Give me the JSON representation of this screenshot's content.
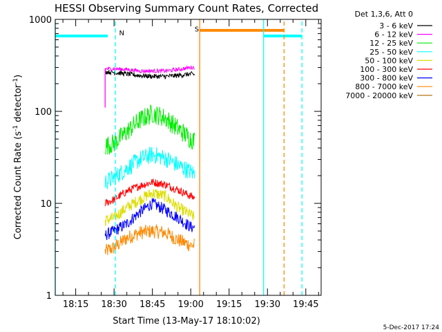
{
  "chart_data": {
    "type": "line",
    "title": "HESSI Observing Summary Count Rates, Corrected",
    "xlabel": "Start Time (13-May-17 18:10:02)",
    "ylabel_parts": [
      "Corrected Count Rate (s",
      "-1",
      " detector",
      "-1",
      ")"
    ],
    "ylabel": "Corrected Count Rate (s^-1 detector^-1)",
    "yscale": "log",
    "ylim": [
      1,
      1000
    ],
    "xlim_minutes": [
      1087,
      1191
    ],
    "x_ticks": [
      {
        "minute": 1095,
        "label": "18:15"
      },
      {
        "minute": 1110,
        "label": "18:30"
      },
      {
        "minute": 1125,
        "label": "18:45"
      },
      {
        "minute": 1140,
        "label": "19:00"
      },
      {
        "minute": 1155,
        "label": "19:15"
      },
      {
        "minute": 1170,
        "label": "19:30"
      },
      {
        "minute": 1185,
        "label": "19:45"
      }
    ],
    "y_ticks": [
      {
        "value": 1,
        "label": "1"
      },
      {
        "value": 10,
        "label": "10"
      },
      {
        "value": 100,
        "label": "100"
      },
      {
        "value": 1000,
        "label": "1000"
      }
    ],
    "legend_title": "Det 1,3,6, Att 0",
    "legend_placement": "right",
    "footer_date": "5-Dec-2017 17:24",
    "series": [
      {
        "name": "3 - 6 keV",
        "color": "#000000",
        "x_minutes": [
          1106.5,
          1110,
          1115,
          1120,
          1125,
          1130,
          1135,
          1140,
          1141.5
        ],
        "values": [
          270,
          265,
          255,
          245,
          240,
          240,
          245,
          255,
          250
        ],
        "noise": 0.06
      },
      {
        "name": "6 - 12 keV",
        "color": "#ff00ff",
        "x_minutes": [
          1106.5,
          1110,
          1115,
          1120,
          1125,
          1130,
          1135,
          1140,
          1141.5
        ],
        "values": [
          290,
          290,
          285,
          275,
          275,
          275,
          285,
          300,
          300
        ],
        "noise": 0.05
      },
      {
        "name": "12 - 25 keV",
        "color": "#00ee00",
        "x_minutes": [
          1106.5,
          1110,
          1115,
          1120,
          1125,
          1130,
          1135,
          1140,
          1141.5
        ],
        "values": [
          42,
          45,
          60,
          80,
          95,
          85,
          65,
          50,
          48
        ],
        "noise": 0.25
      },
      {
        "name": "25 - 50 keV",
        "color": "#00ffff",
        "x_minutes": [
          1106.5,
          1110,
          1115,
          1120,
          1125,
          1130,
          1135,
          1140,
          1141.5
        ],
        "values": [
          17,
          19,
          24,
          30,
          34,
          31,
          26,
          22,
          21
        ],
        "noise": 0.22
      },
      {
        "name": "50 - 100 keV",
        "color": "#dddd00",
        "x_minutes": [
          1106.5,
          1110,
          1115,
          1120,
          1125,
          1130,
          1135,
          1140,
          1141.5
        ],
        "values": [
          6.5,
          7,
          9,
          11,
          13,
          12,
          9,
          7.5,
          7
        ],
        "noise": 0.15
      },
      {
        "name": "100 - 300 keV",
        "color": "#ff0000",
        "x_minutes": [
          1106.5,
          1110,
          1115,
          1120,
          1125,
          1130,
          1135,
          1140,
          1141.5
        ],
        "values": [
          10,
          11,
          13.5,
          15.5,
          17,
          16,
          14,
          12,
          11.5
        ],
        "noise": 0.1
      },
      {
        "name": "300 - 800 keV",
        "color": "#0000ff",
        "x_minutes": [
          1106.5,
          1110,
          1115,
          1120,
          1125,
          1130,
          1135,
          1140,
          1141.5
        ],
        "values": [
          4.5,
          5,
          6,
          8,
          10,
          8.5,
          7,
          5.5,
          5.5
        ],
        "noise": 0.15
      },
      {
        "name": "800 - 7000 keV",
        "color": "#ff8800",
        "x_minutes": [
          1106.5,
          1110,
          1115,
          1120,
          1125,
          1130,
          1135,
          1140,
          1141.5
        ],
        "values": [
          3,
          3.3,
          4.2,
          4.8,
          5,
          4.8,
          4,
          3.5,
          3.5
        ],
        "noise": 0.18
      },
      {
        "name": "7000 - 20000 keV",
        "color": "#aa6600",
        "x_minutes": [],
        "values": [],
        "noise": 0
      }
    ],
    "states": [
      {
        "kind": "bar",
        "color": "#00ffff",
        "x0": 1087,
        "x1": 1107.5,
        "value": 660
      },
      {
        "kind": "bar",
        "color": "#ff8800",
        "x0": 1143.5,
        "x1": 1176.5,
        "value": 760
      },
      {
        "kind": "bar",
        "color": "#00ffff",
        "x0": 1168.5,
        "x1": 1183.5,
        "value": 660
      },
      {
        "kind": "vline",
        "color": "#00ffff",
        "x": 1087,
        "style": "solid"
      },
      {
        "kind": "vline",
        "color": "#00ffff",
        "x": 1110.5,
        "style": "dashed"
      },
      {
        "kind": "vline",
        "color": "#ff8800",
        "x": 1143.5,
        "style": "solid"
      },
      {
        "kind": "vline",
        "color": "#00ffff",
        "x": 1168.5,
        "style": "solid"
      },
      {
        "kind": "vline",
        "color": "#ff8800",
        "x": 1176.5,
        "style": "dashed"
      },
      {
        "kind": "vline",
        "color": "#00ffff",
        "x": 1183.5,
        "style": "dashed"
      },
      {
        "kind": "vline",
        "color": "#ff00ff",
        "x": 1106.5,
        "style": "solid",
        "y0": 110,
        "y1": 290
      }
    ],
    "state_labels": [
      {
        "text": "N",
        "color": "#00ffff",
        "x": 1112,
        "value": 720
      },
      {
        "text": "S",
        "color": "#ff8800",
        "x": 1141.5,
        "value": 790
      }
    ]
  }
}
